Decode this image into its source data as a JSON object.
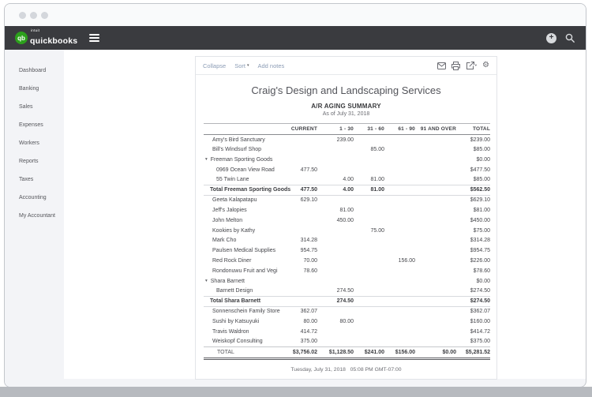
{
  "colors": {
    "brand_green": "#2ca01c",
    "navbar_bg": "#3a3b3f",
    "link_muted_blue": "#8b9cb5"
  },
  "navbar": {
    "brand_top": "intuit",
    "brand": "quickbooks",
    "logo_glyph": "qb",
    "icons": [
      "hamburger-icon",
      "plus-icon",
      "search-icon"
    ]
  },
  "sidebar": {
    "items": [
      "Dashboard",
      "Banking",
      "Sales",
      "Expenses",
      "Workers",
      "Reports",
      "Taxes",
      "Accounting",
      "My Accountant"
    ]
  },
  "toolbar": {
    "collapse": "Collapse",
    "sort": "Sort",
    "sort_caret": "▾",
    "add_notes": "Add notes",
    "icons": [
      "mail-icon",
      "print-icon",
      "export-icon",
      "gear-icon"
    ],
    "gear_glyph": "⚙",
    "export_caret": "▾"
  },
  "report": {
    "company": "Craig's Design and Landscaping Services",
    "title": "A/R AGING SUMMARY",
    "subtitle": "As of July 31, 2018",
    "footer": "Tuesday, July 31, 2018   05:08 PM GMT-07:00"
  },
  "table": {
    "columns": [
      "",
      "CURRENT",
      "1 - 30",
      "31 - 60",
      "61 - 90",
      "91 AND OVER",
      "TOTAL"
    ],
    "caret_glyph": "▾",
    "rows": [
      {
        "type": "normal",
        "cells": [
          "Amy's Bird Sanctuary",
          "",
          "239.00",
          "",
          "",
          "",
          "$239.00"
        ]
      },
      {
        "type": "normal",
        "cells": [
          "Bill's Windsurf Shop",
          "",
          "",
          "85.00",
          "",
          "",
          "$85.00"
        ]
      },
      {
        "type": "parent",
        "cells": [
          "Freeman Sporting Goods",
          "",
          "",
          "",
          "",
          "",
          "$0.00"
        ]
      },
      {
        "type": "sub",
        "cells": [
          "0969 Ocean View Road",
          "477.50",
          "",
          "",
          "",
          "",
          "$477.50"
        ]
      },
      {
        "type": "sub",
        "cells": [
          "55 Twin Lane",
          "",
          "4.00",
          "81.00",
          "",
          "",
          "$85.00"
        ]
      },
      {
        "type": "total",
        "cells": [
          "Total Freeman Sporting Goods",
          "477.50",
          "4.00",
          "81.00",
          "",
          "",
          "$562.50"
        ]
      },
      {
        "type": "normal",
        "cells": [
          "Geeta Kalapatapu",
          "629.10",
          "",
          "",
          "",
          "",
          "$629.10"
        ]
      },
      {
        "type": "normal",
        "cells": [
          "Jeff's Jalopies",
          "",
          "81.00",
          "",
          "",
          "",
          "$81.00"
        ]
      },
      {
        "type": "normal",
        "cells": [
          "John Melton",
          "",
          "450.00",
          "",
          "",
          "",
          "$450.00"
        ]
      },
      {
        "type": "normal",
        "cells": [
          "Kookies by Kathy",
          "",
          "",
          "75.00",
          "",
          "",
          "$75.00"
        ]
      },
      {
        "type": "normal",
        "cells": [
          "Mark Cho",
          "314.28",
          "",
          "",
          "",
          "",
          "$314.28"
        ]
      },
      {
        "type": "normal",
        "cells": [
          "Paulsen Medical Supplies",
          "954.75",
          "",
          "",
          "",
          "",
          "$954.75"
        ]
      },
      {
        "type": "normal",
        "cells": [
          "Red Rock Diner",
          "70.00",
          "",
          "",
          "156.00",
          "",
          "$226.00"
        ]
      },
      {
        "type": "normal",
        "cells": [
          "Rondonuwu Fruit and Vegi",
          "78.60",
          "",
          "",
          "",
          "",
          "$78.60"
        ]
      },
      {
        "type": "parent",
        "cells": [
          "Shara Barnett",
          "",
          "",
          "",
          "",
          "",
          "$0.00"
        ]
      },
      {
        "type": "sub",
        "cells": [
          "Barnett Design",
          "",
          "274.50",
          "",
          "",
          "",
          "$274.50"
        ]
      },
      {
        "type": "total",
        "cells": [
          "Total Shara Barnett",
          "",
          "274.50",
          "",
          "",
          "",
          "$274.50"
        ]
      },
      {
        "type": "normal",
        "cells": [
          "Sonnenschein Family Store",
          "362.07",
          "",
          "",
          "",
          "",
          "$362.07"
        ]
      },
      {
        "type": "normal",
        "cells": [
          "Sushi by Katsuyuki",
          "80.00",
          "80.00",
          "",
          "",
          "",
          "$160.00"
        ]
      },
      {
        "type": "normal",
        "cells": [
          "Travis Waldron",
          "414.72",
          "",
          "",
          "",
          "",
          "$414.72"
        ]
      },
      {
        "type": "normal",
        "cells": [
          "Weiskopf Consulting",
          "375.00",
          "",
          "",
          "",
          "",
          "$375.00"
        ]
      },
      {
        "type": "grand",
        "cells": [
          "TOTAL",
          "$3,756.02",
          "$1,128.50",
          "$241.00",
          "$156.00",
          "$0.00",
          "$5,281.52"
        ]
      }
    ]
  }
}
